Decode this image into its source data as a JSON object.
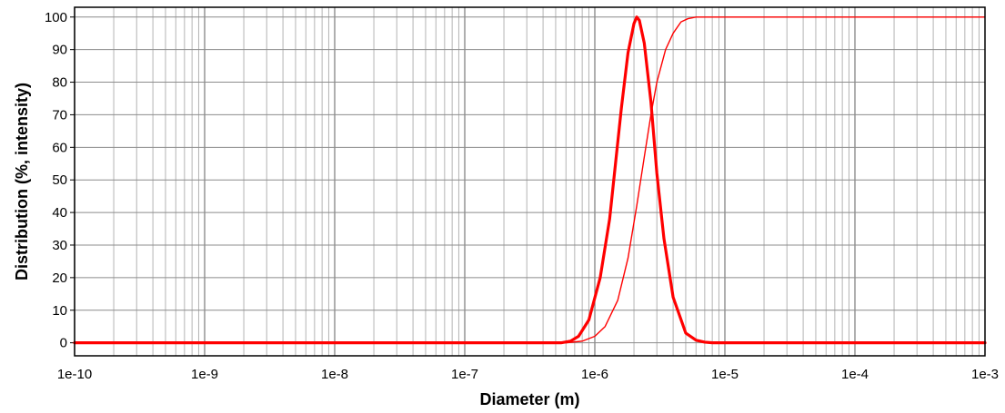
{
  "chart_data": {
    "type": "line",
    "title": "",
    "xlabel": "Diameter (m)",
    "ylabel": "Distribution (%, intensity)",
    "x_scale": "log",
    "xlim": [
      1e-10,
      0.001
    ],
    "ylim": [
      -4,
      103
    ],
    "grid": true,
    "x_ticks": [
      "1e-10",
      "1e-9",
      "1e-8",
      "1e-7",
      "1e-6",
      "1e-5",
      "1e-4",
      "1e-3"
    ],
    "y_ticks": [
      0,
      10,
      20,
      30,
      40,
      50,
      60,
      70,
      80,
      90,
      100
    ],
    "series": [
      {
        "color": "#ff0000",
        "style": "thick",
        "x": [
          1e-10,
          5.5e-07,
          6.5e-07,
          7.5e-07,
          9e-07,
          1.1e-06,
          1.3e-06,
          1.6e-06,
          1.8e-06,
          2e-06,
          2.1e-06,
          2.2e-06,
          2.4e-06,
          2.7e-06,
          3e-06,
          3.4e-06,
          4e-06,
          5e-06,
          6e-06,
          7e-06,
          8e-06,
          0.001
        ],
        "y": [
          0,
          0,
          0.5,
          2,
          7,
          20,
          38,
          72,
          89,
          98,
          100,
          99,
          92,
          74,
          52,
          32,
          14,
          3,
          0.8,
          0.2,
          0,
          0
        ]
      },
      {
        "color": "#ff0000",
        "style": "thin",
        "x": [
          1e-10,
          6e-07,
          8e-07,
          1e-06,
          1.2e-06,
          1.5e-06,
          1.8e-06,
          2.1e-06,
          2.4e-06,
          2.7e-06,
          3e-06,
          3.5e-06,
          4e-06,
          4.6e-06,
          5.2e-06,
          6e-06,
          0.001
        ],
        "y": [
          0,
          0,
          0.5,
          2,
          5,
          13,
          26,
          42,
          57,
          70,
          80,
          90,
          95,
          98.5,
          99.5,
          100,
          100
        ]
      }
    ]
  }
}
